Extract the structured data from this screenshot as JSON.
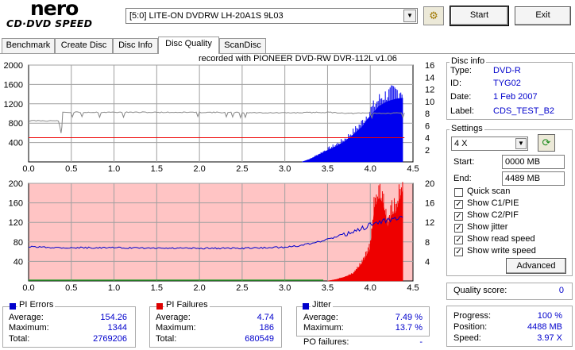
{
  "app": {
    "logo_top": "nero",
    "logo_bottom": "CD·DVD SPEED"
  },
  "toolbar": {
    "drive": "[5:0]  LITE-ON DVDRW LH-20A1S 9L03",
    "start_label": "Start",
    "exit_label": "Exit"
  },
  "tabs": [
    {
      "label": "Benchmark",
      "active": false
    },
    {
      "label": "Create Disc",
      "active": false
    },
    {
      "label": "Disc Info",
      "active": false
    },
    {
      "label": "Disc Quality",
      "active": true
    },
    {
      "label": "ScanDisc",
      "active": false
    }
  ],
  "recorded_with": "recorded with PIONEER DVD-RW  DVR-112L v1.06",
  "disc_info": {
    "title": "Disc info",
    "type_label": "Type:",
    "type_value": "DVD-R",
    "id_label": "ID:",
    "id_value": "TYG02",
    "date_label": "Date:",
    "date_value": "1 Feb 2007",
    "label_label": "Label:",
    "label_value": "CDS_TEST_B2"
  },
  "settings": {
    "title": "Settings",
    "speed": "4 X",
    "start_label": "Start:",
    "start_value": "0000 MB",
    "end_label": "End:",
    "end_value": "4489 MB",
    "checkboxes": [
      {
        "label": "Quick scan",
        "checked": false
      },
      {
        "label": "Show C1/PIE",
        "checked": true
      },
      {
        "label": "Show C2/PIF",
        "checked": true
      },
      {
        "label": "Show jitter",
        "checked": true
      },
      {
        "label": "Show read speed",
        "checked": true
      },
      {
        "label": "Show write speed",
        "checked": true
      }
    ],
    "advanced_label": "Advanced"
  },
  "quality": {
    "label": "Quality score:",
    "value": "0"
  },
  "progress": {
    "progress_label": "Progress:",
    "progress_value": "100 %",
    "position_label": "Position:",
    "position_value": "4488 MB",
    "speed_label": "Speed:",
    "speed_value": "3.97 X"
  },
  "pi_errors": {
    "title": "PI Errors",
    "color": "#0000cc",
    "average_label": "Average:",
    "average": "154.26",
    "maximum_label": "Maximum:",
    "maximum": "1344",
    "total_label": "Total:",
    "total": "2769206"
  },
  "pi_failures": {
    "title": "PI Failures",
    "color": "#dd0000",
    "average_label": "Average:",
    "average": "4.74",
    "maximum_label": "Maximum:",
    "maximum": "186",
    "total_label": "Total:",
    "total": "680549"
  },
  "jitter": {
    "title": "Jitter",
    "color": "#0000cc",
    "average_label": "Average:",
    "average": "7.49 %",
    "maximum_label": "Maximum:",
    "maximum": "13.7 %",
    "po_label": "PO failures:",
    "po_value": "-"
  },
  "chart_data": [
    {
      "type": "area",
      "title": "PI Errors",
      "x_ticks": [
        "0.0",
        "0.5",
        "1.0",
        "1.5",
        "2.0",
        "2.5",
        "3.0",
        "3.5",
        "4.0",
        "4.5"
      ],
      "y_left_ticks": [
        "2000",
        "1600",
        "1200",
        "800",
        "400"
      ],
      "y_right_ticks": [
        "16",
        "14",
        "12",
        "10",
        "8",
        "6",
        "4",
        "2"
      ],
      "xlim": [
        0,
        4.5
      ],
      "ylim": [
        0,
        2000
      ],
      "y2lim": [
        0,
        16
      ],
      "series": [
        {
          "kind": "pi_errors",
          "color": "#0000ee",
          "x": [
            3.2,
            3.3,
            3.4,
            3.5,
            3.6,
            3.7,
            3.8,
            3.9,
            4.0,
            4.1,
            4.2,
            4.3,
            4.38
          ],
          "y": [
            0,
            60,
            150,
            240,
            320,
            420,
            560,
            720,
            950,
            1150,
            1250,
            1300,
            1320
          ]
        },
        {
          "kind": "read_speed",
          "color": "#888888",
          "x": [
            0.0,
            0.05,
            0.2,
            0.35,
            0.38,
            0.4,
            1.0,
            2.0,
            3.0,
            3.5,
            3.8,
            4.0,
            4.2,
            4.4
          ],
          "y": [
            6.8,
            6.8,
            6.8,
            6.8,
            4.8,
            8.2,
            8.2,
            8.2,
            8.1,
            8.2,
            8.0,
            8.1,
            8.0,
            8.1
          ]
        },
        {
          "kind": "write_speed",
          "color": "#ee0000",
          "x": [
            0.0,
            4.4
          ],
          "y": [
            4.0,
            4.0
          ]
        }
      ]
    },
    {
      "type": "area",
      "title": "PI Failures",
      "x_ticks": [
        "0.0",
        "0.5",
        "1.0",
        "1.5",
        "2.0",
        "2.5",
        "3.0",
        "3.5",
        "4.0",
        "4.5"
      ],
      "y_left_ticks": [
        "200",
        "160",
        "120",
        "80",
        "40"
      ],
      "y_right_ticks": [
        "20",
        "16",
        "12",
        "8",
        "4"
      ],
      "xlim": [
        0,
        4.5
      ],
      "ylim": [
        0,
        200
      ],
      "y2lim": [
        0,
        20
      ],
      "series": [
        {
          "kind": "pi_failures",
          "color": "#ee0000",
          "x": [
            3.5,
            3.6,
            3.7,
            3.8,
            3.9,
            4.0,
            4.05,
            4.1,
            4.15,
            4.2,
            4.25,
            4.3,
            4.35,
            4.38
          ],
          "y": [
            0,
            3,
            8,
            15,
            35,
            65,
            150,
            170,
            160,
            110,
            135,
            140,
            170,
            186
          ]
        },
        {
          "kind": "jitter",
          "color": "#0000cc",
          "x": [
            0.0,
            0.5,
            1.0,
            1.5,
            2.0,
            2.5,
            3.0,
            3.2,
            3.4,
            3.6,
            3.8,
            4.0,
            4.2,
            4.38
          ],
          "y": [
            7.0,
            6.8,
            6.8,
            6.7,
            6.7,
            6.7,
            6.9,
            7.3,
            8.0,
            9.0,
            10.0,
            11.5,
            12.5,
            13.0
          ]
        }
      ]
    }
  ]
}
